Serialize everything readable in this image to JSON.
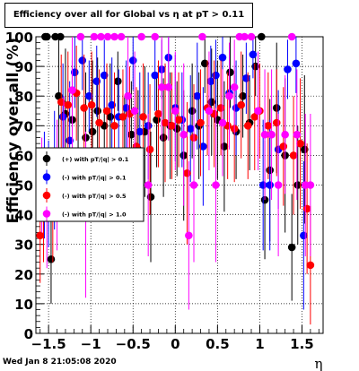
{
  "chart_data": {
    "type": "scatter",
    "title": "Efficiency over all for Global vs   η at pT > 0.11",
    "xlabel": "η",
    "ylabel": "Efficiency over all (%)",
    "xlim": [
      -1.65,
      1.75
    ],
    "ylim": [
      0,
      100
    ],
    "x_ticks": [
      -1.5,
      -1,
      -0.5,
      0,
      0.5,
      1,
      1.5
    ],
    "x_tick_labels": [
      "−1.5",
      "−1",
      "−0.5",
      "0",
      "0.5",
      "1",
      "1.5"
    ],
    "y_ticks": [
      0,
      10,
      20,
      30,
      40,
      50,
      60,
      70,
      80,
      90,
      100
    ],
    "y_tick_labels": [
      "0",
      "10",
      "20",
      "30",
      "40",
      "50",
      "60",
      "70",
      "80",
      "90",
      "100"
    ],
    "grid": true,
    "legend_position": "left-middle",
    "series": [
      {
        "name": "(+) with pT/|q| > 0.1",
        "color": "#000000",
        "points": [
          [
            -1.54,
            100,
            0
          ],
          [
            -1.52,
            100,
            0
          ],
          [
            -1.42,
            100,
            0
          ],
          [
            -1.36,
            100,
            0
          ],
          [
            -1.47,
            25,
            15
          ],
          [
            -1.38,
            80,
            20
          ],
          [
            -1.3,
            74,
            22
          ],
          [
            -1.22,
            72,
            20
          ],
          [
            -1.15,
            60,
            20
          ],
          [
            -1.06,
            66,
            22
          ],
          [
            -0.98,
            68,
            24
          ],
          [
            -0.92,
            75,
            18
          ],
          [
            -0.84,
            70,
            16
          ],
          [
            -0.77,
            73,
            18
          ],
          [
            -0.68,
            85,
            10
          ],
          [
            -0.6,
            60,
            20
          ],
          [
            -0.52,
            67,
            18
          ],
          [
            -0.44,
            62,
            20
          ],
          [
            -0.36,
            68,
            22
          ],
          [
            -0.29,
            46,
            22
          ],
          [
            -0.22,
            72,
            16
          ],
          [
            -0.14,
            66,
            20
          ],
          [
            -0.06,
            70,
            18
          ],
          [
            0.02,
            69,
            16
          ],
          [
            0.1,
            60,
            22
          ],
          [
            0.2,
            75,
            16
          ],
          [
            0.28,
            70,
            18
          ],
          [
            0.35,
            91,
            10
          ],
          [
            0.43,
            78,
            18
          ],
          [
            0.5,
            72,
            20
          ],
          [
            0.58,
            63,
            22
          ],
          [
            0.65,
            88,
            12
          ],
          [
            0.72,
            68,
            16
          ],
          [
            0.8,
            80,
            14
          ],
          [
            0.88,
            71,
            16
          ],
          [
            0.95,
            90,
            10
          ],
          [
            1.02,
            100,
            0
          ],
          [
            1.06,
            45,
            20
          ],
          [
            1.12,
            55,
            24
          ],
          [
            1.2,
            76,
            22
          ],
          [
            1.3,
            60,
            26
          ],
          [
            1.38,
            29,
            18
          ],
          [
            1.45,
            50,
            20
          ],
          [
            1.53,
            62,
            25
          ]
        ]
      },
      {
        "name": "(-) with pT/|q| > 0.1",
        "color": "#0000ff",
        "points": [
          [
            -1.55,
            50,
            18
          ],
          [
            -1.5,
            47,
            18
          ],
          [
            -1.43,
            55,
            20
          ],
          [
            -1.33,
            73,
            18
          ],
          [
            -1.25,
            65,
            20
          ],
          [
            -1.19,
            88,
            12
          ],
          [
            -1.1,
            92,
            10
          ],
          [
            -1.02,
            80,
            12
          ],
          [
            -0.93,
            85,
            12
          ],
          [
            -0.84,
            87,
            12
          ],
          [
            -0.75,
            77,
            16
          ],
          [
            -0.67,
            73,
            16
          ],
          [
            -0.58,
            76,
            16
          ],
          [
            -0.5,
            92,
            10
          ],
          [
            -0.42,
            68,
            20
          ],
          [
            -0.32,
            70,
            18
          ],
          [
            -0.24,
            87,
            12
          ],
          [
            -0.16,
            89,
            10
          ],
          [
            -0.08,
            93,
            10
          ],
          [
            0.0,
            76,
            18
          ],
          [
            0.08,
            72,
            16
          ],
          [
            0.18,
            69,
            18
          ],
          [
            0.26,
            80,
            18
          ],
          [
            0.33,
            63,
            20
          ],
          [
            0.42,
            85,
            12
          ],
          [
            0.48,
            87,
            12
          ],
          [
            0.56,
            93,
            10
          ],
          [
            0.64,
            81,
            14
          ],
          [
            0.72,
            76,
            16
          ],
          [
            0.84,
            86,
            12
          ],
          [
            0.92,
            94,
            8
          ],
          [
            1.04,
            50,
            22
          ],
          [
            1.12,
            50,
            22
          ],
          [
            1.22,
            62,
            20
          ],
          [
            1.33,
            89,
            10
          ],
          [
            1.43,
            91,
            10
          ],
          [
            1.52,
            33,
            25
          ]
        ]
      },
      {
        "name": "(-) with pT/|q| > 0.5",
        "color": "#ff0000",
        "points": [
          [
            -1.6,
            33,
            16
          ],
          [
            -1.56,
            40,
            16
          ],
          [
            -1.45,
            42,
            18
          ],
          [
            -1.35,
            78,
            16
          ],
          [
            -1.27,
            77,
            18
          ],
          [
            -1.17,
            81,
            16
          ],
          [
            -1.08,
            76,
            18
          ],
          [
            -0.99,
            77,
            18
          ],
          [
            -0.9,
            71,
            18
          ],
          [
            -0.81,
            75,
            16
          ],
          [
            -0.72,
            70,
            18
          ],
          [
            -0.62,
            73,
            16
          ],
          [
            -0.54,
            74,
            16
          ],
          [
            -0.46,
            63,
            20
          ],
          [
            -0.38,
            73,
            18
          ],
          [
            -0.3,
            62,
            22
          ],
          [
            -0.2,
            74,
            18
          ],
          [
            -0.12,
            71,
            20
          ],
          [
            -0.04,
            70,
            18
          ],
          [
            0.04,
            72,
            16
          ],
          [
            0.14,
            54,
            24
          ],
          [
            0.22,
            66,
            18
          ],
          [
            0.3,
            71,
            18
          ],
          [
            0.38,
            76,
            16
          ],
          [
            0.46,
            74,
            18
          ],
          [
            0.54,
            76,
            16
          ],
          [
            0.62,
            70,
            18
          ],
          [
            0.7,
            69,
            18
          ],
          [
            0.78,
            77,
            18
          ],
          [
            0.86,
            70,
            18
          ],
          [
            0.94,
            73,
            18
          ],
          [
            1.0,
            75,
            16
          ],
          [
            1.1,
            70,
            18
          ],
          [
            1.2,
            71,
            18
          ],
          [
            1.28,
            63,
            20
          ],
          [
            1.4,
            60,
            20
          ],
          [
            1.48,
            64,
            22
          ],
          [
            1.56,
            42,
            22
          ],
          [
            1.6,
            23,
            20
          ]
        ]
      },
      {
        "name": "(-) with pT/|q| > 1.0",
        "color": "#ff00ff",
        "points": [
          [
            -1.58,
            50,
            16
          ],
          [
            -1.52,
            40,
            18
          ],
          [
            -1.4,
            50,
            22
          ],
          [
            -1.32,
            60,
            20
          ],
          [
            -1.22,
            82,
            20
          ],
          [
            -1.12,
            100,
            0
          ],
          [
            -1.06,
            40,
            28
          ],
          [
            -0.96,
            100,
            0
          ],
          [
            -0.88,
            100,
            0
          ],
          [
            -0.8,
            100,
            0
          ],
          [
            -0.72,
            100,
            0
          ],
          [
            -0.64,
            100,
            0
          ],
          [
            -0.56,
            80,
            20
          ],
          [
            -0.48,
            75,
            20
          ],
          [
            -0.4,
            100,
            0
          ],
          [
            -0.32,
            50,
            24
          ],
          [
            -0.24,
            100,
            0
          ],
          [
            -0.16,
            83,
            18
          ],
          [
            -0.08,
            83,
            18
          ],
          [
            0.0,
            75,
            20
          ],
          [
            0.1,
            67,
            24
          ],
          [
            0.16,
            33,
            25
          ],
          [
            0.22,
            50,
            26
          ],
          [
            0.32,
            100,
            0
          ],
          [
            0.4,
            75,
            20
          ],
          [
            0.48,
            50,
            26
          ],
          [
            0.56,
            71,
            18
          ],
          [
            0.64,
            80,
            18
          ],
          [
            0.7,
            83,
            16
          ],
          [
            0.76,
            100,
            0
          ],
          [
            0.82,
            100,
            0
          ],
          [
            0.9,
            100,
            0
          ],
          [
            0.98,
            75,
            20
          ],
          [
            1.06,
            67,
            22
          ],
          [
            1.14,
            67,
            22
          ],
          [
            1.22,
            50,
            24
          ],
          [
            1.3,
            67,
            20
          ],
          [
            1.38,
            100,
            0
          ],
          [
            1.44,
            67,
            22
          ],
          [
            1.54,
            50,
            24
          ],
          [
            1.6,
            50,
            24
          ]
        ]
      }
    ]
  },
  "footer": {
    "date": "Wed Jan  8 21:05:08 2020"
  }
}
